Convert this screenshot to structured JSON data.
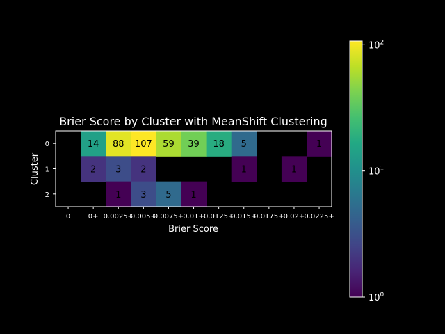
{
  "chart_data": {
    "type": "heatmap",
    "title": "Brier Score by Cluster with MeanShift Clustering",
    "xlabel": "Brier Score",
    "ylabel": "Cluster",
    "x_categories": [
      "0",
      "0+",
      "0.0025+",
      "0.005+",
      "0.0075+",
      "0.01+",
      "0.0125+",
      "0.015+",
      "0.0175+",
      "0.02+",
      "0.0225+"
    ],
    "y_categories": [
      "0",
      "1",
      "2"
    ],
    "values": [
      [
        null,
        14,
        88,
        107,
        59,
        39,
        18,
        5,
        null,
        null,
        1
      ],
      [
        null,
        2,
        3,
        2,
        null,
        null,
        null,
        1,
        null,
        1,
        null
      ],
      [
        null,
        null,
        1,
        3,
        5,
        1,
        null,
        null,
        null,
        null,
        null
      ]
    ],
    "colorbar": {
      "scale": "log",
      "min": 1,
      "max": 107,
      "ticks": [
        {
          "base": "10",
          "exp": "0",
          "value": 1
        },
        {
          "base": "10",
          "exp": "1",
          "value": 10
        },
        {
          "base": "10",
          "exp": "2",
          "value": 100
        }
      ],
      "colormap": "viridis",
      "position": "right"
    }
  }
}
